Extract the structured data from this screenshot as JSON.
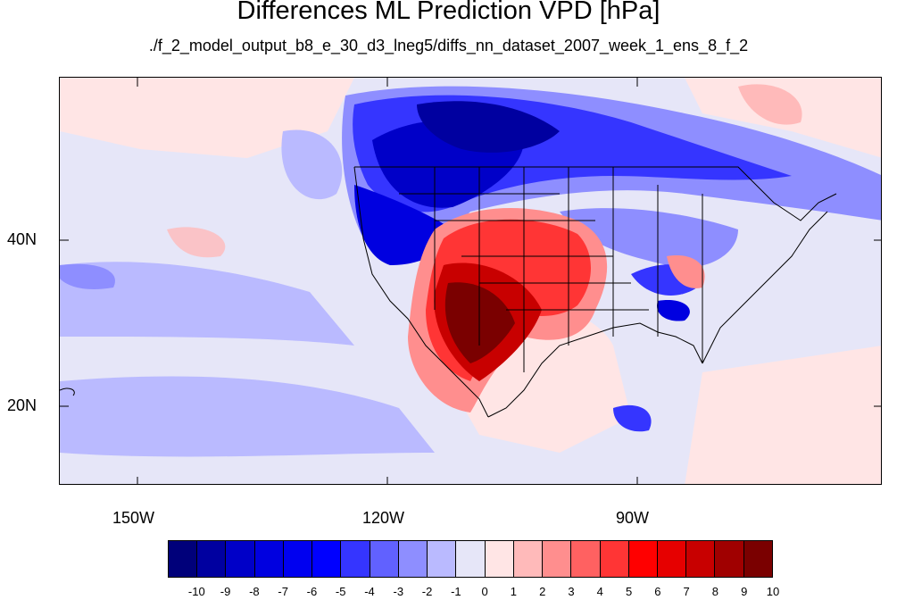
{
  "title": "Differences ML Prediction VPD [hPa]",
  "subtitle": "./f_2_model_output_b8_e_30_d3_lneg5/diffs_nn_dataset_2007_week_1_ens_8_f_2",
  "lat_labels": [
    "40N",
    "20N"
  ],
  "lon_labels": [
    "150W",
    "120W",
    "90W"
  ],
  "colorbar": {
    "labels": [
      "-10",
      "-9",
      "-8",
      "-7",
      "-6",
      "-5",
      "-4",
      "-3",
      "-2",
      "-1",
      "0",
      "1",
      "2",
      "3",
      "4",
      "5",
      "6",
      "7",
      "8",
      "9",
      "10"
    ],
    "colors": [
      "#00007a",
      "#0000a0",
      "#0000c8",
      "#0000e0",
      "#0000f0",
      "#0000ff",
      "#3535ff",
      "#6161ff",
      "#8e8eff",
      "#babaff",
      "#e6e6f8",
      "#ffe5e5",
      "#ffbaba",
      "#ff8e8e",
      "#ff6161",
      "#ff3535",
      "#ff0000",
      "#e60000",
      "#c80000",
      "#a00000",
      "#7a0000"
    ]
  }
}
